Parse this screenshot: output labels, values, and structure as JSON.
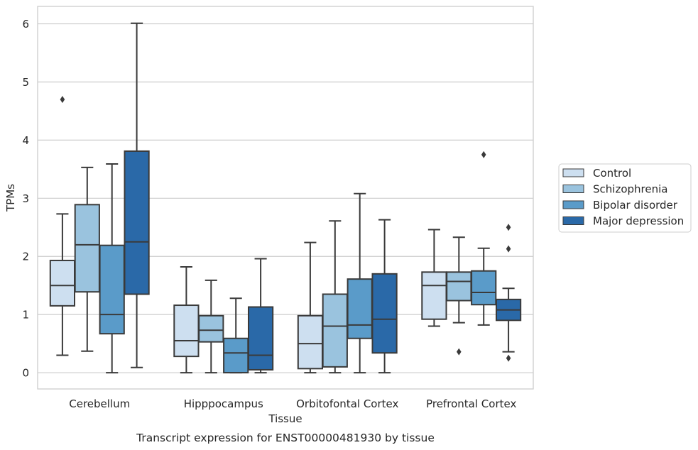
{
  "chart_data": {
    "type": "boxplot",
    "title": "Transcript expression for ENST00000481930 by tissue",
    "xlabel": "Tissue",
    "ylabel": "TPMs",
    "ylim": [
      -0.28,
      6.3
    ],
    "yticks": [
      0,
      1,
      2,
      3,
      4,
      5,
      6
    ],
    "grid": true,
    "legend_position": "right-center",
    "categories": [
      "Cerebellum",
      "Hipppocampus",
      "Orbitofontal Cortex",
      "Prefrontal Cortex"
    ],
    "series": [
      {
        "name": "Control",
        "color": "#cddff0",
        "boxes": [
          {
            "whislo": 0.3,
            "q1": 1.15,
            "med": 1.5,
            "q3": 1.93,
            "whishi": 2.73,
            "fliers": [
              4.7
            ]
          },
          {
            "whislo": 0.0,
            "q1": 0.28,
            "med": 0.55,
            "q3": 1.16,
            "whishi": 1.82,
            "fliers": []
          },
          {
            "whislo": 0.0,
            "q1": 0.07,
            "med": 0.5,
            "q3": 0.98,
            "whishi": 2.24,
            "fliers": []
          },
          {
            "whislo": 0.8,
            "q1": 0.92,
            "med": 1.5,
            "q3": 1.73,
            "whishi": 2.46,
            "fliers": []
          }
        ]
      },
      {
        "name": "Schizophrenia",
        "color": "#9ac3de",
        "boxes": [
          {
            "whislo": 0.37,
            "q1": 1.39,
            "med": 2.2,
            "q3": 2.89,
            "whishi": 3.53,
            "fliers": []
          },
          {
            "whislo": 0.0,
            "q1": 0.53,
            "med": 0.73,
            "q3": 0.98,
            "whishi": 1.59,
            "fliers": []
          },
          {
            "whislo": 0.0,
            "q1": 0.1,
            "med": 0.8,
            "q3": 1.35,
            "whishi": 2.61,
            "fliers": []
          },
          {
            "whislo": 0.86,
            "q1": 1.24,
            "med": 1.57,
            "q3": 1.73,
            "whishi": 2.33,
            "fliers": [
              0.36
            ]
          }
        ]
      },
      {
        "name": "Bipolar disorder",
        "color": "#5a9bc9",
        "boxes": [
          {
            "whislo": 0.0,
            "q1": 0.67,
            "med": 1.0,
            "q3": 2.19,
            "whishi": 3.59,
            "fliers": []
          },
          {
            "whislo": 0.0,
            "q1": 0.0,
            "med": 0.34,
            "q3": 0.59,
            "whishi": 1.28,
            "fliers": []
          },
          {
            "whislo": 0.0,
            "q1": 0.59,
            "med": 0.82,
            "q3": 1.61,
            "whishi": 3.08,
            "fliers": []
          },
          {
            "whislo": 0.82,
            "q1": 1.17,
            "med": 1.38,
            "q3": 1.75,
            "whishi": 2.14,
            "fliers": [
              3.75
            ]
          }
        ]
      },
      {
        "name": "Major depression",
        "color": "#2a69a8",
        "boxes": [
          {
            "whislo": 0.09,
            "q1": 1.35,
            "med": 2.25,
            "q3": 3.81,
            "whishi": 6.01,
            "fliers": []
          },
          {
            "whislo": 0.0,
            "q1": 0.05,
            "med": 0.3,
            "q3": 1.13,
            "whishi": 1.96,
            "fliers": []
          },
          {
            "whislo": 0.0,
            "q1": 0.34,
            "med": 0.92,
            "q3": 1.7,
            "whishi": 2.63,
            "fliers": []
          },
          {
            "whislo": 0.36,
            "q1": 0.9,
            "med": 1.08,
            "q3": 1.26,
            "whishi": 1.45,
            "fliers": [
              2.5,
              2.13,
              0.25
            ]
          }
        ]
      }
    ]
  }
}
